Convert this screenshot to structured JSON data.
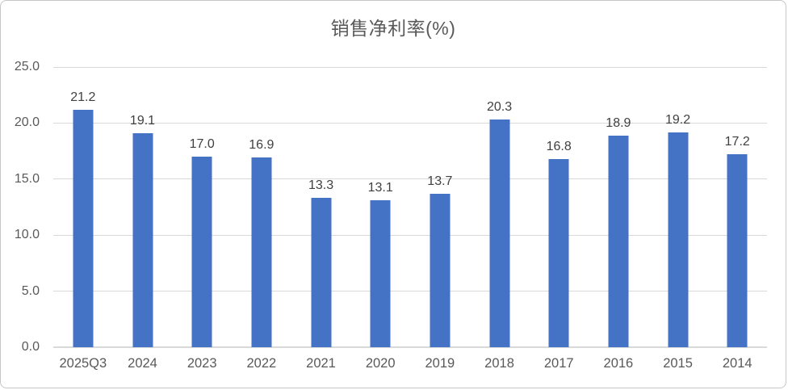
{
  "chart_data": {
    "type": "bar",
    "title": "销售净利率(%)",
    "categories": [
      "2025Q3",
      "2024",
      "2023",
      "2022",
      "2021",
      "2020",
      "2019",
      "2018",
      "2017",
      "2016",
      "2015",
      "2014"
    ],
    "values": [
      21.2,
      19.1,
      17.0,
      16.9,
      13.3,
      13.1,
      13.7,
      20.3,
      16.8,
      18.9,
      19.2,
      17.2
    ],
    "value_labels": [
      "21.2",
      "19.1",
      "17.0",
      "16.9",
      "13.3",
      "13.1",
      "13.7",
      "20.3",
      "16.8",
      "18.9",
      "19.2",
      "17.2"
    ],
    "xlabel": "",
    "ylabel": "",
    "ylim": [
      0,
      25
    ],
    "yticks": [
      {
        "value": 0,
        "label": "0.0"
      },
      {
        "value": 5,
        "label": "5.0"
      },
      {
        "value": 10,
        "label": "10.0"
      },
      {
        "value": 15,
        "label": "15.0"
      },
      {
        "value": 20,
        "label": "20.0"
      },
      {
        "value": 25,
        "label": "25.0"
      }
    ],
    "grid": true,
    "legend": "none",
    "colors": {
      "bar": "#4472C4",
      "gridline": "#D9D9D9",
      "axis_line": "#D9D9D9",
      "title": "#595959",
      "tick_label": "#595959",
      "data_label": "#404040",
      "frame_border": "#C6C6C6",
      "background": "#FFFFFF"
    }
  }
}
